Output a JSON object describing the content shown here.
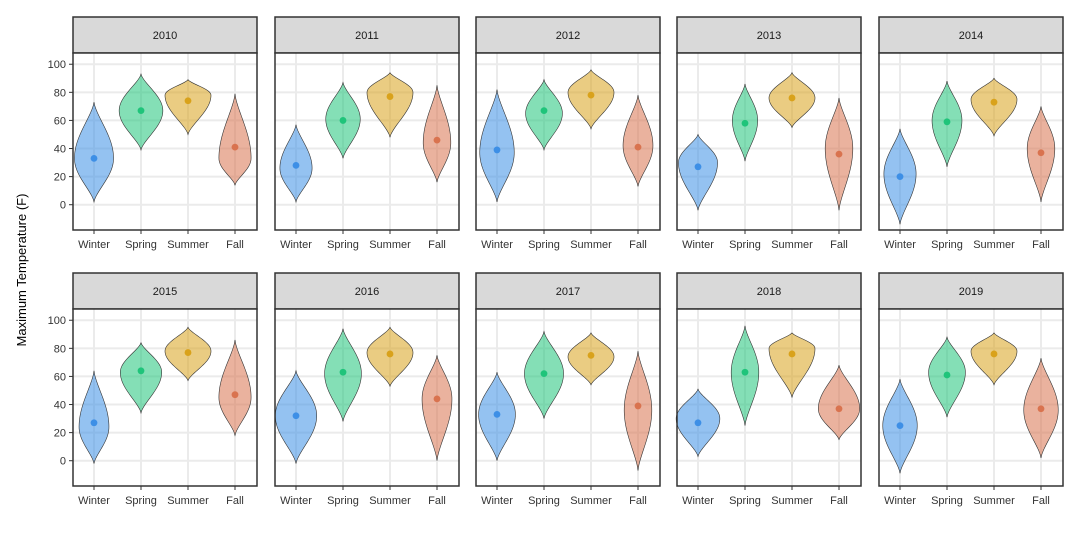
{
  "chart_data": {
    "type": "violin",
    "ylabel": "Maximum Temperature (F)",
    "xlabel": "",
    "ylim": [
      -18,
      108
    ],
    "yticks": [
      0,
      20,
      40,
      60,
      80,
      100
    ],
    "categories": [
      "Winter",
      "Spring",
      "Summer",
      "Fall"
    ],
    "colors": {
      "Winter": "#3d8fe6",
      "Spring": "#1fc47a",
      "Summer": "#d9a21b",
      "Fall": "#d9734f"
    },
    "grid": true,
    "legend": "none",
    "panels": [
      {
        "year": "2010",
        "series": [
          {
            "season": "Winter",
            "min": 2,
            "max": 73,
            "mean": 33,
            "mode": 33,
            "width": 0.85
          },
          {
            "season": "Spring",
            "min": 39,
            "max": 93,
            "mean": 67,
            "mode": 67,
            "width": 0.95
          },
          {
            "season": "Summer",
            "min": 50,
            "max": 89,
            "mean": 74,
            "mode": 78,
            "width": 1.0
          },
          {
            "season": "Fall",
            "min": 14,
            "max": 79,
            "mean": 41,
            "mode": 33,
            "width": 0.7
          }
        ]
      },
      {
        "year": "2011",
        "series": [
          {
            "season": "Winter",
            "min": 2,
            "max": 57,
            "mean": 28,
            "mode": 26,
            "width": 0.7
          },
          {
            "season": "Spring",
            "min": 33,
            "max": 87,
            "mean": 60,
            "mode": 61,
            "width": 0.75
          },
          {
            "season": "Summer",
            "min": 48,
            "max": 94,
            "mean": 77,
            "mode": 80,
            "width": 1.0
          },
          {
            "season": "Fall",
            "min": 16,
            "max": 85,
            "mean": 46,
            "mode": 44,
            "width": 0.6
          }
        ]
      },
      {
        "year": "2012",
        "series": [
          {
            "season": "Winter",
            "min": 2,
            "max": 82,
            "mean": 39,
            "mode": 37,
            "width": 0.75
          },
          {
            "season": "Spring",
            "min": 39,
            "max": 89,
            "mean": 67,
            "mode": 65,
            "width": 0.8
          },
          {
            "season": "Summer",
            "min": 54,
            "max": 96,
            "mean": 78,
            "mode": 80,
            "width": 1.0
          },
          {
            "season": "Fall",
            "min": 13,
            "max": 78,
            "mean": 41,
            "mode": 42,
            "width": 0.65
          }
        ]
      },
      {
        "year": "2013",
        "series": [
          {
            "season": "Winter",
            "min": -4,
            "max": 50,
            "mean": 27,
            "mode": 30,
            "width": 0.85
          },
          {
            "season": "Spring",
            "min": 31,
            "max": 86,
            "mean": 58,
            "mode": 60,
            "width": 0.55
          },
          {
            "season": "Summer",
            "min": 55,
            "max": 94,
            "mean": 76,
            "mode": 76,
            "width": 1.0
          },
          {
            "season": "Fall",
            "min": -4,
            "max": 76,
            "mean": 36,
            "mode": 40,
            "width": 0.6
          }
        ]
      },
      {
        "year": "2014",
        "series": [
          {
            "season": "Winter",
            "min": -14,
            "max": 54,
            "mean": 20,
            "mode": 22,
            "width": 0.7
          },
          {
            "season": "Spring",
            "min": 27,
            "max": 88,
            "mean": 59,
            "mode": 60,
            "width": 0.65
          },
          {
            "season": "Summer",
            "min": 49,
            "max": 90,
            "mean": 73,
            "mode": 75,
            "width": 1.0
          },
          {
            "season": "Fall",
            "min": 2,
            "max": 70,
            "mean": 37,
            "mode": 40,
            "width": 0.6
          }
        ]
      },
      {
        "year": "2015",
        "series": [
          {
            "season": "Winter",
            "min": -2,
            "max": 64,
            "mean": 27,
            "mode": 24,
            "width": 0.65
          },
          {
            "season": "Spring",
            "min": 34,
            "max": 84,
            "mean": 64,
            "mode": 63,
            "width": 0.9
          },
          {
            "season": "Summer",
            "min": 57,
            "max": 95,
            "mean": 77,
            "mode": 78,
            "width": 1.0
          },
          {
            "season": "Fall",
            "min": 18,
            "max": 86,
            "mean": 47,
            "mode": 45,
            "width": 0.7
          }
        ]
      },
      {
        "year": "2016",
        "series": [
          {
            "season": "Winter",
            "min": -2,
            "max": 64,
            "mean": 32,
            "mode": 32,
            "width": 0.9
          },
          {
            "season": "Spring",
            "min": 28,
            "max": 94,
            "mean": 63,
            "mode": 62,
            "width": 0.8
          },
          {
            "season": "Summer",
            "min": 53,
            "max": 95,
            "mean": 76,
            "mode": 77,
            "width": 1.0
          },
          {
            "season": "Fall",
            "min": 0,
            "max": 75,
            "mean": 44,
            "mode": 44,
            "width": 0.65
          }
        ]
      },
      {
        "year": "2017",
        "series": [
          {
            "season": "Winter",
            "min": 0,
            "max": 63,
            "mean": 33,
            "mode": 33,
            "width": 0.8
          },
          {
            "season": "Spring",
            "min": 30,
            "max": 92,
            "mean": 62,
            "mode": 62,
            "width": 0.85
          },
          {
            "season": "Summer",
            "min": 54,
            "max": 91,
            "mean": 75,
            "mode": 74,
            "width": 1.0
          },
          {
            "season": "Fall",
            "min": -7,
            "max": 78,
            "mean": 39,
            "mode": 36,
            "width": 0.6
          }
        ]
      },
      {
        "year": "2018",
        "series": [
          {
            "season": "Winter",
            "min": 3,
            "max": 51,
            "mean": 27,
            "mode": 30,
            "width": 0.95
          },
          {
            "season": "Spring",
            "min": 25,
            "max": 96,
            "mean": 63,
            "mode": 63,
            "width": 0.6
          },
          {
            "season": "Summer",
            "min": 45,
            "max": 91,
            "mean": 76,
            "mode": 80,
            "width": 1.0
          },
          {
            "season": "Fall",
            "min": 15,
            "max": 68,
            "mean": 37,
            "mode": 37,
            "width": 0.9
          }
        ]
      },
      {
        "year": "2019",
        "series": [
          {
            "season": "Winter",
            "min": -9,
            "max": 58,
            "mean": 25,
            "mode": 25,
            "width": 0.75
          },
          {
            "season": "Spring",
            "min": 31,
            "max": 88,
            "mean": 61,
            "mode": 63,
            "width": 0.8
          },
          {
            "season": "Summer",
            "min": 54,
            "max": 91,
            "mean": 76,
            "mode": 78,
            "width": 1.0
          },
          {
            "season": "Fall",
            "min": 2,
            "max": 73,
            "mean": 37,
            "mode": 36,
            "width": 0.75
          }
        ]
      }
    ]
  }
}
